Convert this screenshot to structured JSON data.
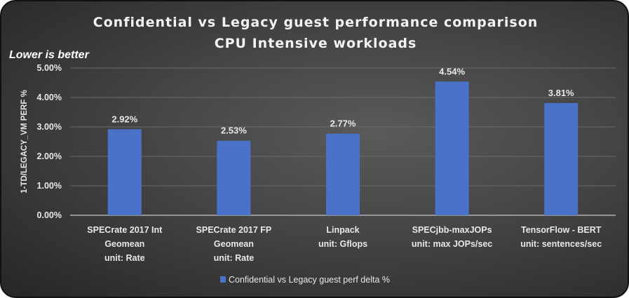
{
  "chart_data": {
    "type": "bar",
    "title": [
      "Confidential vs Legacy guest performance comparison",
      "CPU Intensive workloads"
    ],
    "subtitle": "Lower is better",
    "ylabel": "1-TD/LEGACY_VM PERF  %",
    "xlabel": "",
    "ylim": [
      0,
      5
    ],
    "yticks": [
      "0.00%",
      "1.00%",
      "2.00%",
      "3.00%",
      "4.00%",
      "5.00%"
    ],
    "grid": true,
    "categories": [
      [
        "SPECrate 2017 Int",
        "Geomean",
        "unit: Rate"
      ],
      [
        "SPECrate 2017 FP",
        "Geomean",
        "unit: Rate"
      ],
      [
        "Linpack",
        "unit: Gflops"
      ],
      [
        "SPECjbb-maxJOPs",
        "unit: max JOPs/sec"
      ],
      [
        "TensorFlow - BERT",
        "unit: sentences/sec"
      ]
    ],
    "series": [
      {
        "name": "Confidential vs Legacy guest perf delta %",
        "values": [
          2.92,
          2.53,
          2.77,
          4.54,
          3.81
        ],
        "labels": [
          "2.92%",
          "2.53%",
          "2.77%",
          "4.54%",
          "3.81%"
        ],
        "color": "#4a72c8"
      }
    ],
    "legend": "bottom"
  }
}
